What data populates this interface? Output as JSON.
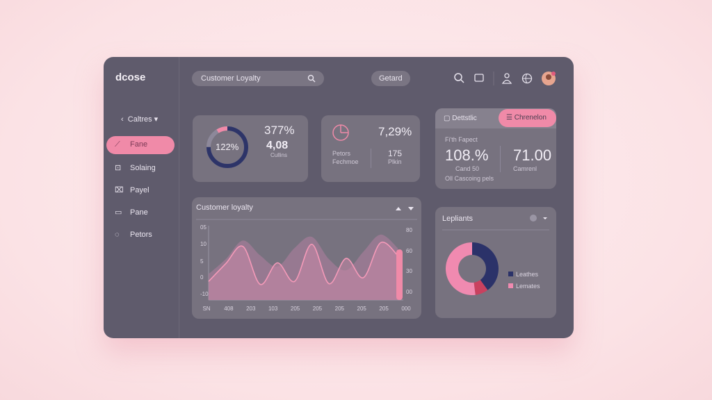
{
  "logo": "dcose",
  "search": "Customer Loyalty",
  "button": "Getard",
  "sidebar": {
    "header": "Caltres",
    "items": [
      "Fane",
      "Solaing",
      "Payel",
      "Pane",
      "Petors"
    ]
  },
  "card1": {
    "ring_label": "122%",
    "ring_value": 75,
    "primary": "377%",
    "secondary": "4,08",
    "caption": "Cullins"
  },
  "card2": {
    "primary": "7,29%",
    "left_top": "Petors",
    "left_bottom": "Fechmoe",
    "right_top": "175",
    "right_bottom": "Plkin"
  },
  "card3": {
    "tabs": [
      "Dettstlic",
      "Chrenelon"
    ],
    "subtitle": "Fi'th Fapect",
    "metrics": [
      {
        "value": "108.%",
        "label": "Cand 50"
      },
      {
        "value": "71.00",
        "label": "Camrenl"
      }
    ],
    "footer": "Oll Cascoing pels"
  },
  "chart": {
    "type": "area",
    "title": "Customer loyalty",
    "y_labels": [
      "05",
      "10",
      "5",
      "0",
      "-10"
    ],
    "y2_labels": [
      "80",
      "60",
      "30",
      "00"
    ],
    "x_labels": [
      "SN",
      "408",
      "203",
      "103",
      "205",
      "205",
      "205",
      "205",
      "205",
      "000"
    ],
    "ylim": [
      0,
      100
    ],
    "back_values": [
      35,
      55,
      80,
      60,
      45,
      70,
      85,
      55,
      40,
      65,
      88,
      70
    ],
    "line_values": [
      25,
      49,
      72,
      21,
      50,
      25,
      75,
      22,
      56,
      30,
      77,
      60
    ],
    "bar_value": 68
  },
  "donut": {
    "type": "pie",
    "title": "Lepliants",
    "values": [
      40,
      8,
      52
    ],
    "colors": [
      "#2b3269",
      "#c9415f",
      "#f08ab0"
    ],
    "legend": [
      {
        "name": "Leathes",
        "color": "#2b3269"
      },
      {
        "name": "Lemates",
        "color": "#f08ab0"
      }
    ]
  }
}
